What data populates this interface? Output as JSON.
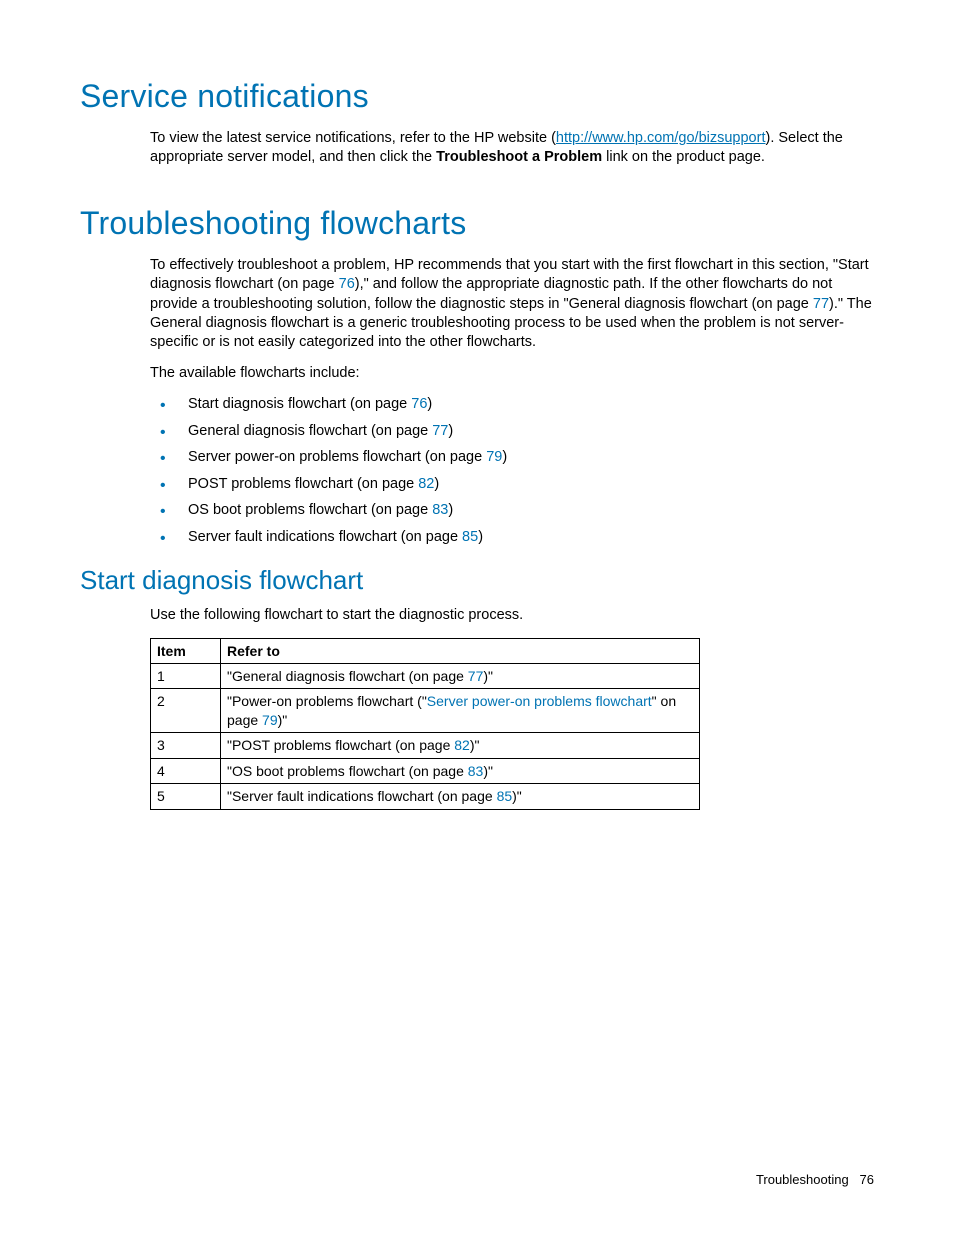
{
  "sec1": {
    "title": "Service notifications",
    "p1a": "To view the latest service notifications, refer to the HP website (",
    "p1link": "http://www.hp.com/go/bizsupport",
    "p1b": "). Select the appropriate server model, and then click the ",
    "p1bold": "Troubleshoot a Problem",
    "p1c": " link on the product page."
  },
  "sec2": {
    "title": "Troubleshooting flowcharts",
    "p1a": "To effectively troubleshoot a problem, HP recommends that you start with the first flowchart in this section, \"Start diagnosis flowchart (on page ",
    "p1pg1": "76",
    "p1b": "),\" and follow the appropriate diagnostic path. If the other flowcharts do not provide a troubleshooting solution, follow the diagnostic steps in \"General diagnosis flowchart (on page ",
    "p1pg2": "77",
    "p1c": ").\" The General diagnosis flowchart is a generic troubleshooting process to be used when the problem is not server-specific or is not easily categorized into the other flowcharts.",
    "p2": "The available flowcharts include:",
    "items": [
      {
        "pre": "Start diagnosis flowchart (on page ",
        "pg": "76",
        "post": ")"
      },
      {
        "pre": "General diagnosis flowchart (on page ",
        "pg": "77",
        "post": ")"
      },
      {
        "pre": "Server power-on problems flowchart (on page ",
        "pg": "79",
        "post": ")"
      },
      {
        "pre": "POST problems flowchart (on page ",
        "pg": "82",
        "post": ")"
      },
      {
        "pre": "OS boot problems flowchart (on page ",
        "pg": "83",
        "post": ")"
      },
      {
        "pre": "Server fault indications flowchart (on page ",
        "pg": "85",
        "post": ")"
      }
    ]
  },
  "sec3": {
    "title": "Start diagnosis flowchart",
    "intro": "Use the following flowchart to start the diagnostic process.",
    "table": {
      "h1": "Item",
      "h2": "Refer to",
      "rows": [
        {
          "n": "1",
          "a": "\"General diagnosis flowchart (on page ",
          "pg": "77",
          "b": ")\""
        },
        {
          "n": "2",
          "a": "\"Power-on problems flowchart (\"",
          "link": "Server power-on problems flowchart",
          "mid": "\" on page ",
          "pg": "79",
          "b": ")\""
        },
        {
          "n": "3",
          "a": "\"POST problems flowchart (on page ",
          "pg": "82",
          "b": ")\""
        },
        {
          "n": "4",
          "a": "\"OS boot problems flowchart (on page ",
          "pg": "83",
          "b": ")\""
        },
        {
          "n": "5",
          "a": "\"Server fault indications flowchart (on page ",
          "pg": "85",
          "b": ")\""
        }
      ]
    }
  },
  "footer": {
    "section": "Troubleshooting",
    "page": "76"
  }
}
